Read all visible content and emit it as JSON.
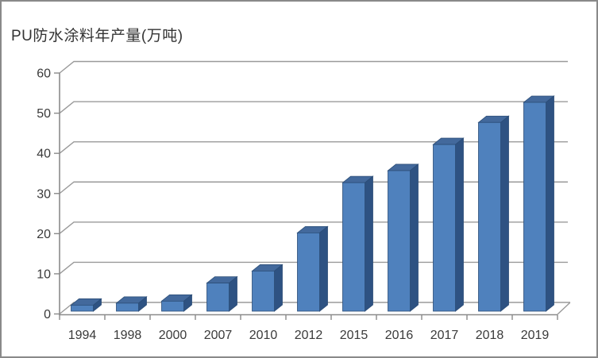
{
  "frame": {
    "background": "#ffffff",
    "border_color": "#898989"
  },
  "chart_data": {
    "type": "bar",
    "style": "3d-column",
    "title": "PU防水涂料年产量(万吨)",
    "categories": [
      "1994",
      "1998",
      "2000",
      "2007",
      "2010",
      "2012",
      "2015",
      "2016",
      "2017",
      "2018",
      "2019"
    ],
    "values": [
      1.5,
      2,
      2.5,
      7,
      10,
      19.5,
      32,
      35,
      41.5,
      47,
      52
    ],
    "unit": "万吨",
    "xlabel": "",
    "ylabel": "",
    "ylim": [
      0,
      60
    ],
    "ytick_interval": 10,
    "ytick_labels": [
      "0",
      "10",
      "20",
      "30",
      "40",
      "50",
      "60"
    ],
    "grid": true,
    "legend": "none",
    "colors": {
      "bar_front": "#4f81bd",
      "bar_top": "#43699c",
      "bar_side": "#2e5282",
      "bar_edge": "#2b4d77",
      "gridline": "#9a9a9a",
      "axis": "#8a8a8a",
      "tick_text": "#3a3a3a",
      "title_text": "#333333"
    }
  }
}
